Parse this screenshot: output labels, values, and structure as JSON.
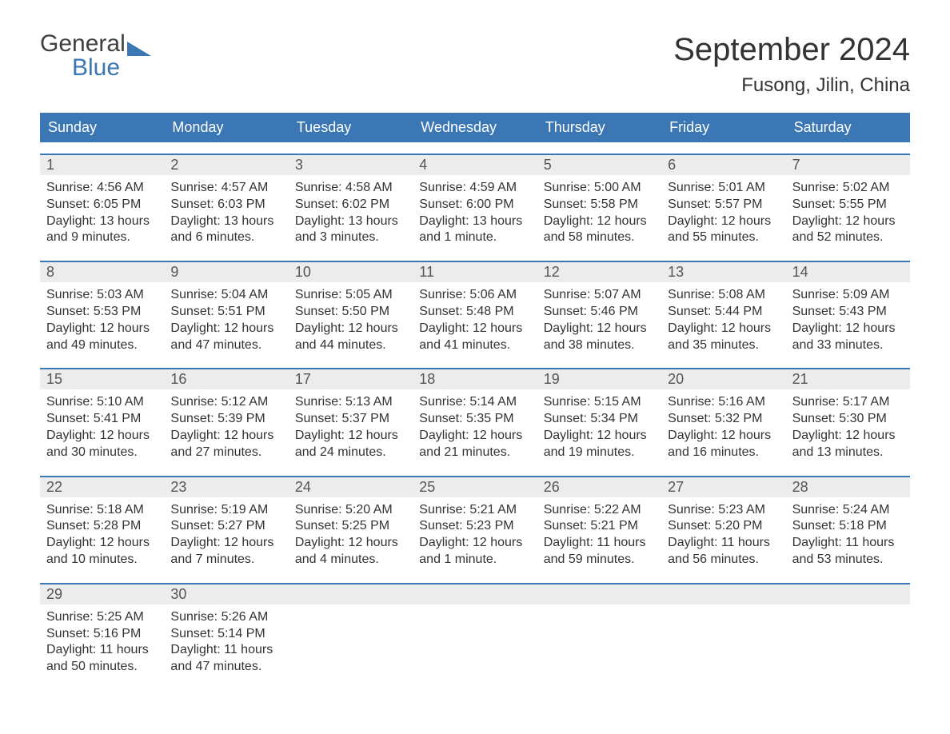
{
  "logo": {
    "text1": "General",
    "text2": "Blue"
  },
  "title": "September 2024",
  "location": "Fusong, Jilin, China",
  "colors": {
    "header_bg": "#3b76b5",
    "header_text": "#ffffff",
    "daynum_bg": "#ececec",
    "daynum_border": "#3b76b5",
    "body_text": "#333333",
    "page_bg": "#ffffff"
  },
  "typography": {
    "title_fontsize": 40,
    "location_fontsize": 24,
    "weekday_fontsize": 18,
    "daynum_fontsize": 18,
    "content_fontsize": 16
  },
  "layout": {
    "columns": 7,
    "rows": 5
  },
  "weekdays": [
    "Sunday",
    "Monday",
    "Tuesday",
    "Wednesday",
    "Thursday",
    "Friday",
    "Saturday"
  ],
  "weeks": [
    [
      {
        "day": "1",
        "sunrise": "Sunrise: 4:56 AM",
        "sunset": "Sunset: 6:05 PM",
        "daylight1": "Daylight: 13 hours",
        "daylight2": "and 9 minutes."
      },
      {
        "day": "2",
        "sunrise": "Sunrise: 4:57 AM",
        "sunset": "Sunset: 6:03 PM",
        "daylight1": "Daylight: 13 hours",
        "daylight2": "and 6 minutes."
      },
      {
        "day": "3",
        "sunrise": "Sunrise: 4:58 AM",
        "sunset": "Sunset: 6:02 PM",
        "daylight1": "Daylight: 13 hours",
        "daylight2": "and 3 minutes."
      },
      {
        "day": "4",
        "sunrise": "Sunrise: 4:59 AM",
        "sunset": "Sunset: 6:00 PM",
        "daylight1": "Daylight: 13 hours",
        "daylight2": "and 1 minute."
      },
      {
        "day": "5",
        "sunrise": "Sunrise: 5:00 AM",
        "sunset": "Sunset: 5:58 PM",
        "daylight1": "Daylight: 12 hours",
        "daylight2": "and 58 minutes."
      },
      {
        "day": "6",
        "sunrise": "Sunrise: 5:01 AM",
        "sunset": "Sunset: 5:57 PM",
        "daylight1": "Daylight: 12 hours",
        "daylight2": "and 55 minutes."
      },
      {
        "day": "7",
        "sunrise": "Sunrise: 5:02 AM",
        "sunset": "Sunset: 5:55 PM",
        "daylight1": "Daylight: 12 hours",
        "daylight2": "and 52 minutes."
      }
    ],
    [
      {
        "day": "8",
        "sunrise": "Sunrise: 5:03 AM",
        "sunset": "Sunset: 5:53 PM",
        "daylight1": "Daylight: 12 hours",
        "daylight2": "and 49 minutes."
      },
      {
        "day": "9",
        "sunrise": "Sunrise: 5:04 AM",
        "sunset": "Sunset: 5:51 PM",
        "daylight1": "Daylight: 12 hours",
        "daylight2": "and 47 minutes."
      },
      {
        "day": "10",
        "sunrise": "Sunrise: 5:05 AM",
        "sunset": "Sunset: 5:50 PM",
        "daylight1": "Daylight: 12 hours",
        "daylight2": "and 44 minutes."
      },
      {
        "day": "11",
        "sunrise": "Sunrise: 5:06 AM",
        "sunset": "Sunset: 5:48 PM",
        "daylight1": "Daylight: 12 hours",
        "daylight2": "and 41 minutes."
      },
      {
        "day": "12",
        "sunrise": "Sunrise: 5:07 AM",
        "sunset": "Sunset: 5:46 PM",
        "daylight1": "Daylight: 12 hours",
        "daylight2": "and 38 minutes."
      },
      {
        "day": "13",
        "sunrise": "Sunrise: 5:08 AM",
        "sunset": "Sunset: 5:44 PM",
        "daylight1": "Daylight: 12 hours",
        "daylight2": "and 35 minutes."
      },
      {
        "day": "14",
        "sunrise": "Sunrise: 5:09 AM",
        "sunset": "Sunset: 5:43 PM",
        "daylight1": "Daylight: 12 hours",
        "daylight2": "and 33 minutes."
      }
    ],
    [
      {
        "day": "15",
        "sunrise": "Sunrise: 5:10 AM",
        "sunset": "Sunset: 5:41 PM",
        "daylight1": "Daylight: 12 hours",
        "daylight2": "and 30 minutes."
      },
      {
        "day": "16",
        "sunrise": "Sunrise: 5:12 AM",
        "sunset": "Sunset: 5:39 PM",
        "daylight1": "Daylight: 12 hours",
        "daylight2": "and 27 minutes."
      },
      {
        "day": "17",
        "sunrise": "Sunrise: 5:13 AM",
        "sunset": "Sunset: 5:37 PM",
        "daylight1": "Daylight: 12 hours",
        "daylight2": "and 24 minutes."
      },
      {
        "day": "18",
        "sunrise": "Sunrise: 5:14 AM",
        "sunset": "Sunset: 5:35 PM",
        "daylight1": "Daylight: 12 hours",
        "daylight2": "and 21 minutes."
      },
      {
        "day": "19",
        "sunrise": "Sunrise: 5:15 AM",
        "sunset": "Sunset: 5:34 PM",
        "daylight1": "Daylight: 12 hours",
        "daylight2": "and 19 minutes."
      },
      {
        "day": "20",
        "sunrise": "Sunrise: 5:16 AM",
        "sunset": "Sunset: 5:32 PM",
        "daylight1": "Daylight: 12 hours",
        "daylight2": "and 16 minutes."
      },
      {
        "day": "21",
        "sunrise": "Sunrise: 5:17 AM",
        "sunset": "Sunset: 5:30 PM",
        "daylight1": "Daylight: 12 hours",
        "daylight2": "and 13 minutes."
      }
    ],
    [
      {
        "day": "22",
        "sunrise": "Sunrise: 5:18 AM",
        "sunset": "Sunset: 5:28 PM",
        "daylight1": "Daylight: 12 hours",
        "daylight2": "and 10 minutes."
      },
      {
        "day": "23",
        "sunrise": "Sunrise: 5:19 AM",
        "sunset": "Sunset: 5:27 PM",
        "daylight1": "Daylight: 12 hours",
        "daylight2": "and 7 minutes."
      },
      {
        "day": "24",
        "sunrise": "Sunrise: 5:20 AM",
        "sunset": "Sunset: 5:25 PM",
        "daylight1": "Daylight: 12 hours",
        "daylight2": "and 4 minutes."
      },
      {
        "day": "25",
        "sunrise": "Sunrise: 5:21 AM",
        "sunset": "Sunset: 5:23 PM",
        "daylight1": "Daylight: 12 hours",
        "daylight2": "and 1 minute."
      },
      {
        "day": "26",
        "sunrise": "Sunrise: 5:22 AM",
        "sunset": "Sunset: 5:21 PM",
        "daylight1": "Daylight: 11 hours",
        "daylight2": "and 59 minutes."
      },
      {
        "day": "27",
        "sunrise": "Sunrise: 5:23 AM",
        "sunset": "Sunset: 5:20 PM",
        "daylight1": "Daylight: 11 hours",
        "daylight2": "and 56 minutes."
      },
      {
        "day": "28",
        "sunrise": "Sunrise: 5:24 AM",
        "sunset": "Sunset: 5:18 PM",
        "daylight1": "Daylight: 11 hours",
        "daylight2": "and 53 minutes."
      }
    ],
    [
      {
        "day": "29",
        "sunrise": "Sunrise: 5:25 AM",
        "sunset": "Sunset: 5:16 PM",
        "daylight1": "Daylight: 11 hours",
        "daylight2": "and 50 minutes."
      },
      {
        "day": "30",
        "sunrise": "Sunrise: 5:26 AM",
        "sunset": "Sunset: 5:14 PM",
        "daylight1": "Daylight: 11 hours",
        "daylight2": "and 47 minutes."
      },
      {
        "empty": true
      },
      {
        "empty": true
      },
      {
        "empty": true
      },
      {
        "empty": true
      },
      {
        "empty": true
      }
    ]
  ]
}
